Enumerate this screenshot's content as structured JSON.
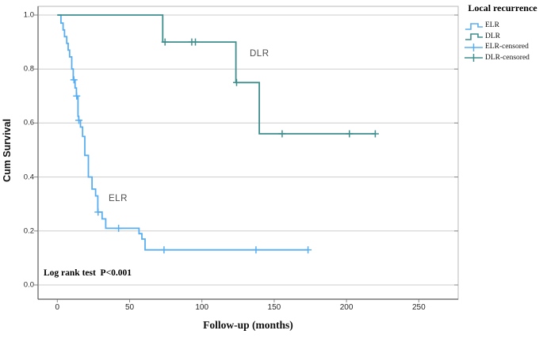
{
  "figure": {
    "background": "#ffffff",
    "gridline_color": "#cdcdcd",
    "frame_color": "#b8b8b8",
    "axis_color": "#5c5c5c",
    "tick_color": "#8a8a8a"
  },
  "legend": {
    "title": "Local recurrence",
    "items": [
      {
        "label": "ELR",
        "series": "ELR",
        "glyph": "step"
      },
      {
        "label": "DLR",
        "series": "DLR",
        "glyph": "step"
      },
      {
        "label": "ELR-censored",
        "series": "ELR",
        "glyph": "censored"
      },
      {
        "label": "DLR-censored",
        "series": "DLR",
        "glyph": "censored"
      }
    ]
  },
  "chart_data": {
    "type": "line",
    "subtype": "kaplan-meier-step-survival",
    "title": "",
    "xlabel": "Follow-up (months)",
    "ylabel": "Cum Survival",
    "xlim": [
      -13,
      277
    ],
    "ylim": [
      -0.05,
      1.03
    ],
    "xticks": [
      0,
      50,
      100,
      150,
      200,
      250
    ],
    "yticks": [
      0.0,
      0.2,
      0.4,
      0.6,
      0.8,
      1.0
    ],
    "ytick_labels": [
      "0.0",
      "0.2",
      "0.4",
      "0.6",
      "0.8",
      "1.0"
    ],
    "grid": "horizontal",
    "legend_position": "outside-top-right",
    "series": [
      {
        "name": "ELR",
        "color": "#58AEF0",
        "steps": [
          [
            0,
            1.0
          ],
          [
            2.5,
            0.97
          ],
          [
            4,
            0.945
          ],
          [
            5,
            0.92
          ],
          [
            6.5,
            0.895
          ],
          [
            7.5,
            0.87
          ],
          [
            8.5,
            0.845
          ],
          [
            10,
            0.8
          ],
          [
            11,
            0.76
          ],
          [
            12.3,
            0.73
          ],
          [
            13.2,
            0.7
          ],
          [
            14.3,
            0.625
          ],
          [
            14.8,
            0.61
          ],
          [
            16,
            0.585
          ],
          [
            17.5,
            0.55
          ],
          [
            19,
            0.48
          ],
          [
            21.5,
            0.4
          ],
          [
            24,
            0.355
          ],
          [
            26.5,
            0.33
          ],
          [
            28,
            0.27
          ],
          [
            31,
            0.245
          ],
          [
            33.5,
            0.21
          ],
          [
            56.5,
            0.19
          ],
          [
            58.5,
            0.17
          ],
          [
            60.7,
            0.13
          ],
          [
            173.4,
            0.13
          ]
        ],
        "censored": [
          [
            11.5,
            0.76
          ],
          [
            13.4,
            0.7
          ],
          [
            14.9,
            0.61
          ],
          [
            28.2,
            0.27
          ],
          [
            42.4,
            0.21
          ],
          [
            73.8,
            0.13
          ],
          [
            137.4,
            0.13
          ],
          [
            173.4,
            0.13
          ]
        ]
      },
      {
        "name": "DLR",
        "color": "#3F8E8E",
        "steps": [
          [
            0,
            1.0
          ],
          [
            72.9,
            0.9
          ],
          [
            123.5,
            0.75
          ],
          [
            139.7,
            0.56
          ],
          [
            219.9,
            0.56
          ]
        ],
        "censored": [
          [
            74.5,
            0.9
          ],
          [
            93,
            0.9
          ],
          [
            95.5,
            0.9
          ],
          [
            124,
            0.75
          ],
          [
            155.5,
            0.56
          ],
          [
            202,
            0.56
          ],
          [
            219.9,
            0.56
          ]
        ]
      }
    ],
    "annotations": {
      "dlr": "DLR",
      "elr": "ELR",
      "log_rank": "Log rank test  P<0.001"
    }
  }
}
